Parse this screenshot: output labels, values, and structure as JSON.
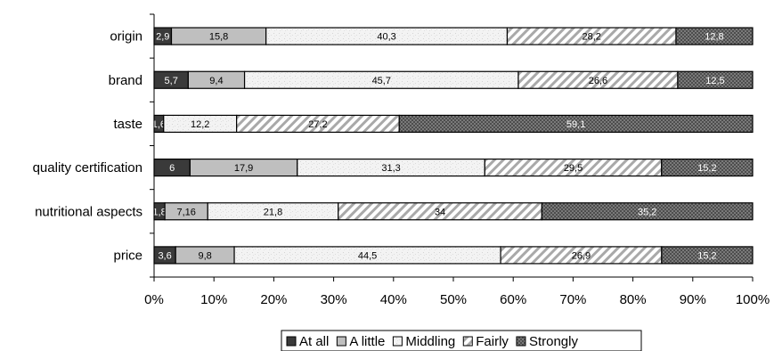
{
  "chart_data": {
    "type": "bar",
    "orientation": "horizontal",
    "stacked": true,
    "percent": true,
    "categories": [
      "origin",
      "brand",
      "taste",
      "quality certification",
      "nutritional aspects",
      "price"
    ],
    "series": [
      {
        "name": "At all",
        "values": [
          2.9,
          5.7,
          1.6,
          6,
          1.8,
          3.6
        ],
        "labels": [
          "2,9",
          "5,7",
          "1,6",
          "6",
          "1,8",
          "3,6"
        ],
        "color": "#3a3a3a",
        "pattern": "solid"
      },
      {
        "name": "A little",
        "values": [
          15.8,
          9.4,
          0,
          17.9,
          7.16,
          9.8
        ],
        "labels": [
          "15,8",
          "9,4",
          "",
          "17,9",
          "7,16",
          "9,8"
        ],
        "color": "#bfbfbf",
        "pattern": "solid"
      },
      {
        "name": "Middling",
        "values": [
          40.3,
          45.7,
          12.2,
          31.3,
          21.8,
          44.5
        ],
        "labels": [
          "40,3",
          "45,7",
          "12,2",
          "31,3",
          "21,8",
          "44,5"
        ],
        "color": "#f1f1f1",
        "pattern": "speckle"
      },
      {
        "name": "Fairly",
        "values": [
          28.2,
          26.6,
          27.2,
          29.5,
          34,
          26.9
        ],
        "labels": [
          "28,2",
          "26,6",
          "27,2",
          "29,5",
          "34",
          "26,9"
        ],
        "color": "#cfcfcf",
        "pattern": "diagonal"
      },
      {
        "name": "Strongly",
        "values": [
          12.8,
          12.5,
          59.1,
          15.2,
          35.2,
          15.2
        ],
        "labels": [
          "12,8",
          "12,5",
          "59,1",
          "15,2",
          "35,2",
          "15,2"
        ],
        "color": "#6e6e6e",
        "pattern": "crosshatch"
      }
    ],
    "xlim": [
      0,
      100
    ],
    "xticks": [
      "0%",
      "10%",
      "20%",
      "30%",
      "40%",
      "50%",
      "60%",
      "70%",
      "80%",
      "90%",
      "100%"
    ],
    "title": "",
    "xlabel": "",
    "ylabel": "",
    "grid": false,
    "legend_position": "bottom"
  }
}
